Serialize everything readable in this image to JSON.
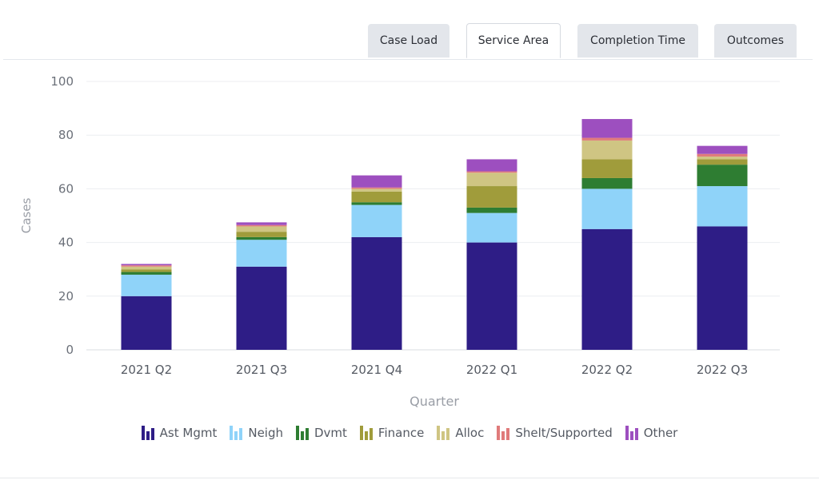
{
  "tabs": [
    {
      "label": "Case Load",
      "active": false
    },
    {
      "label": "Service Area",
      "active": true
    },
    {
      "label": "Completion Time",
      "active": false
    },
    {
      "label": "Outcomes",
      "active": false
    }
  ],
  "chart_data": {
    "type": "bar",
    "stacked": true,
    "categories": [
      "2021 Q2",
      "2021 Q3",
      "2021 Q4",
      "2022 Q1",
      "2022 Q2",
      "2022 Q3"
    ],
    "xlabel": "Quarter",
    "ylabel": "Cases",
    "ylim": [
      0,
      100
    ],
    "yticks": [
      0,
      20,
      40,
      60,
      80,
      100
    ],
    "grid": true,
    "legend_position": "bottom",
    "series": [
      {
        "name": "Ast Mgmt",
        "color": "#2e1d86",
        "values": [
          20,
          31,
          42,
          40,
          45,
          46
        ]
      },
      {
        "name": "Neigh",
        "color": "#8fd3f9",
        "values": [
          8,
          10,
          12,
          11,
          15,
          15
        ]
      },
      {
        "name": "Dvmt",
        "color": "#2e7d32",
        "values": [
          1,
          1,
          1,
          2,
          4,
          8
        ]
      },
      {
        "name": "Finance",
        "color": "#a09c3b",
        "values": [
          1,
          2,
          4,
          8,
          7,
          2
        ]
      },
      {
        "name": "Alloc",
        "color": "#cfc583",
        "values": [
          1,
          2,
          1,
          5,
          7,
          1
        ]
      },
      {
        "name": "Shelt/Supported",
        "color": "#e07b7b",
        "values": [
          0.5,
          0.5,
          0.5,
          0.5,
          1,
          1
        ]
      },
      {
        "name": "Other",
        "color": "#9d4fbf",
        "values": [
          0.5,
          1,
          4.5,
          4.5,
          7,
          3
        ]
      }
    ]
  }
}
